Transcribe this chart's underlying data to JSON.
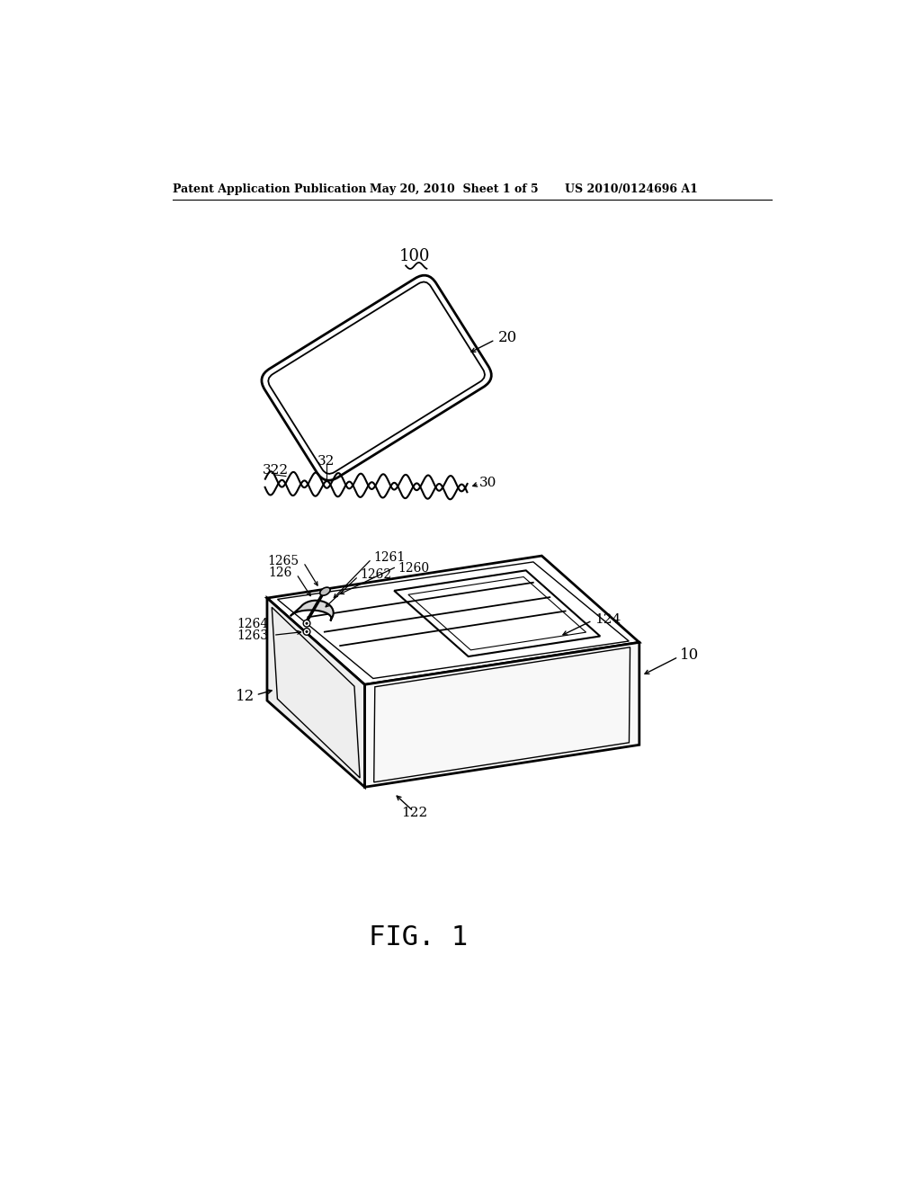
{
  "bg_color": "#ffffff",
  "header_left": "Patent Application Publication",
  "header_mid": "May 20, 2010  Sheet 1 of 5",
  "header_right": "US 2010/0124696 A1",
  "figure_label": "FIG. 1",
  "label_100": "100",
  "label_20": "20",
  "label_30": "30",
  "label_32": "32",
  "label_322": "322",
  "label_10": "10",
  "label_12": "12",
  "label_122": "122",
  "label_124": "124",
  "label_126": "126",
  "label_1260": "1260",
  "label_1261": "1261",
  "label_1262": "1262",
  "label_1263": "1263",
  "label_1264": "1264",
  "label_1265": "1265"
}
